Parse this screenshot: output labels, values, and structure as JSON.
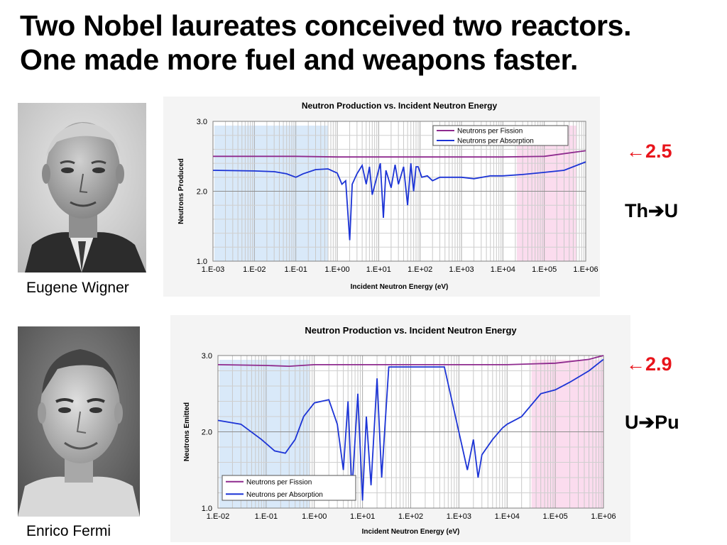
{
  "title_lines": [
    "Two Nobel laureates conceived two reactors.",
    "One made more fuel and weapons faster."
  ],
  "people": [
    {
      "name": "Eugene Wigner"
    },
    {
      "name": "Enrico Fermi"
    }
  ],
  "annotations": [
    {
      "value": "2.5",
      "arrow": "←",
      "reaction_from": "Th",
      "reaction_arrow": "➔",
      "reaction_to": "U",
      "color": "#e8141b"
    },
    {
      "value": "2.9",
      "arrow": "←",
      "reaction_from": "U",
      "reaction_arrow": "➔",
      "reaction_to": "Pu",
      "color": "#e8141b"
    }
  ],
  "chart_data": [
    {
      "type": "line",
      "title": "Neutron Production vs. Incident Neutron Energy",
      "xlabel": "Incident Neutron Energy (eV)",
      "ylabel": "Neutrons Produced",
      "x_scale": "log",
      "xlim": [
        0.001,
        1000000
      ],
      "ylim": [
        1.0,
        3.0
      ],
      "x_tick_labels": [
        "1.E-03",
        "1.E-02",
        "1.E-01",
        "1.E+00",
        "1.E+01",
        "1.E+02",
        "1.E+03",
        "1.E+04",
        "1.E+05",
        "1.E+06"
      ],
      "y_tick_labels": [
        "3.0",
        "2.0",
        "1.0"
      ],
      "y_tick_values": [
        3.0,
        2.0,
        1.0
      ],
      "grid": true,
      "legend_position": "top-right",
      "shaded_regions": [
        {
          "x": [
            0.001,
            0.6
          ],
          "color": "#d9e9f9"
        },
        {
          "x": [
            20000,
            600000
          ],
          "color": "#fbdcee"
        }
      ],
      "series": [
        {
          "name": "Neutrons per Fission",
          "color": "#8e2a8e",
          "points": [
            [
              0.001,
              2.5
            ],
            [
              0.1,
              2.5
            ],
            [
              1,
              2.49
            ],
            [
              10,
              2.49
            ],
            [
              100,
              2.49
            ],
            [
              1000,
              2.49
            ],
            [
              10000,
              2.49
            ],
            [
              100000,
              2.5
            ],
            [
              1000000,
              2.58
            ]
          ]
        },
        {
          "name": "Neutrons per Absorption",
          "color": "#1c34d6",
          "points": [
            [
              0.001,
              2.3
            ],
            [
              0.01,
              2.29
            ],
            [
              0.03,
              2.28
            ],
            [
              0.06,
              2.25
            ],
            [
              0.1,
              2.2
            ],
            [
              0.15,
              2.25
            ],
            [
              0.3,
              2.31
            ],
            [
              0.6,
              2.32
            ],
            [
              1,
              2.26
            ],
            [
              1.3,
              2.1
            ],
            [
              1.6,
              2.15
            ],
            [
              2.0,
              1.3
            ],
            [
              2.3,
              2.1
            ],
            [
              3,
              2.25
            ],
            [
              4,
              2.37
            ],
            [
              5,
              2.1
            ],
            [
              6,
              2.35
            ],
            [
              7,
              1.95
            ],
            [
              9,
              2.2
            ],
            [
              11,
              2.4
            ],
            [
              13,
              1.62
            ],
            [
              15,
              2.3
            ],
            [
              20,
              2.05
            ],
            [
              25,
              2.38
            ],
            [
              30,
              2.1
            ],
            [
              40,
              2.35
            ],
            [
              50,
              1.8
            ],
            [
              60,
              2.4
            ],
            [
              70,
              2.0
            ],
            [
              80,
              2.35
            ],
            [
              90,
              2.35
            ],
            [
              110,
              2.2
            ],
            [
              150,
              2.22
            ],
            [
              200,
              2.15
            ],
            [
              300,
              2.2
            ],
            [
              500,
              2.2
            ],
            [
              1000,
              2.2
            ],
            [
              2000,
              2.18
            ],
            [
              5000,
              2.22
            ],
            [
              10000,
              2.22
            ],
            [
              30000,
              2.24
            ],
            [
              100000,
              2.27
            ],
            [
              300000,
              2.3
            ],
            [
              1000000,
              2.42
            ]
          ]
        }
      ]
    },
    {
      "type": "line",
      "title": "Neutron Production vs. Incident Neutron Energy",
      "xlabel": "Incident Neutron Energy (eV)",
      "ylabel": "Neutrons Emitted",
      "x_scale": "log",
      "xlim": [
        0.01,
        1000000
      ],
      "ylim": [
        1.0,
        3.0
      ],
      "x_tick_labels": [
        "1.E-02",
        "1.E-01",
        "1.E+00",
        "1.E+01",
        "1.E+02",
        "1.E+03",
        "1.E+04",
        "1.E+05",
        "1.E+06"
      ],
      "y_tick_labels": [
        "3.0",
        "2.0",
        "1.0"
      ],
      "y_tick_values": [
        3.0,
        2.0,
        1.0
      ],
      "grid": true,
      "legend_position": "bottom-left",
      "shaded_regions": [
        {
          "x": [
            0.01,
            0.8
          ],
          "color": "#d9e9f9"
        },
        {
          "x": [
            30000,
            1000000
          ],
          "color": "#fbdcee"
        }
      ],
      "series": [
        {
          "name": "Neutrons per Fission",
          "color": "#8e2a8e",
          "points": [
            [
              0.01,
              2.88
            ],
            [
              0.1,
              2.87
            ],
            [
              0.3,
              2.86
            ],
            [
              1,
              2.88
            ],
            [
              10,
              2.88
            ],
            [
              30,
              2.88
            ],
            [
              100,
              2.88
            ],
            [
              1000,
              2.88
            ],
            [
              10000,
              2.88
            ],
            [
              100000,
              2.9
            ],
            [
              500000,
              2.95
            ],
            [
              1000000,
              3.0
            ]
          ]
        },
        {
          "name": "Neutrons per Absorption",
          "color": "#1c34d6",
          "points": [
            [
              0.01,
              2.15
            ],
            [
              0.03,
              2.1
            ],
            [
              0.08,
              1.9
            ],
            [
              0.15,
              1.75
            ],
            [
              0.25,
              1.72
            ],
            [
              0.4,
              1.9
            ],
            [
              0.6,
              2.2
            ],
            [
              1,
              2.38
            ],
            [
              2,
              2.42
            ],
            [
              3,
              2.1
            ],
            [
              4,
              1.5
            ],
            [
              5,
              2.4
            ],
            [
              6,
              1.2
            ],
            [
              8,
              2.5
            ],
            [
              10,
              1.1
            ],
            [
              12,
              2.2
            ],
            [
              15,
              1.3
            ],
            [
              20,
              2.7
            ],
            [
              25,
              1.4
            ],
            [
              35,
              2.85
            ],
            [
              500,
              2.85
            ],
            [
              1500,
              1.5
            ],
            [
              2000,
              1.9
            ],
            [
              2500,
              1.4
            ],
            [
              3000,
              1.7
            ],
            [
              5000,
              1.9
            ],
            [
              8000,
              2.05
            ],
            [
              10000,
              2.1
            ],
            [
              20000,
              2.2
            ],
            [
              50000,
              2.5
            ],
            [
              100000,
              2.55
            ],
            [
              200000,
              2.65
            ],
            [
              500000,
              2.8
            ],
            [
              1000000,
              2.95
            ]
          ]
        }
      ]
    }
  ]
}
